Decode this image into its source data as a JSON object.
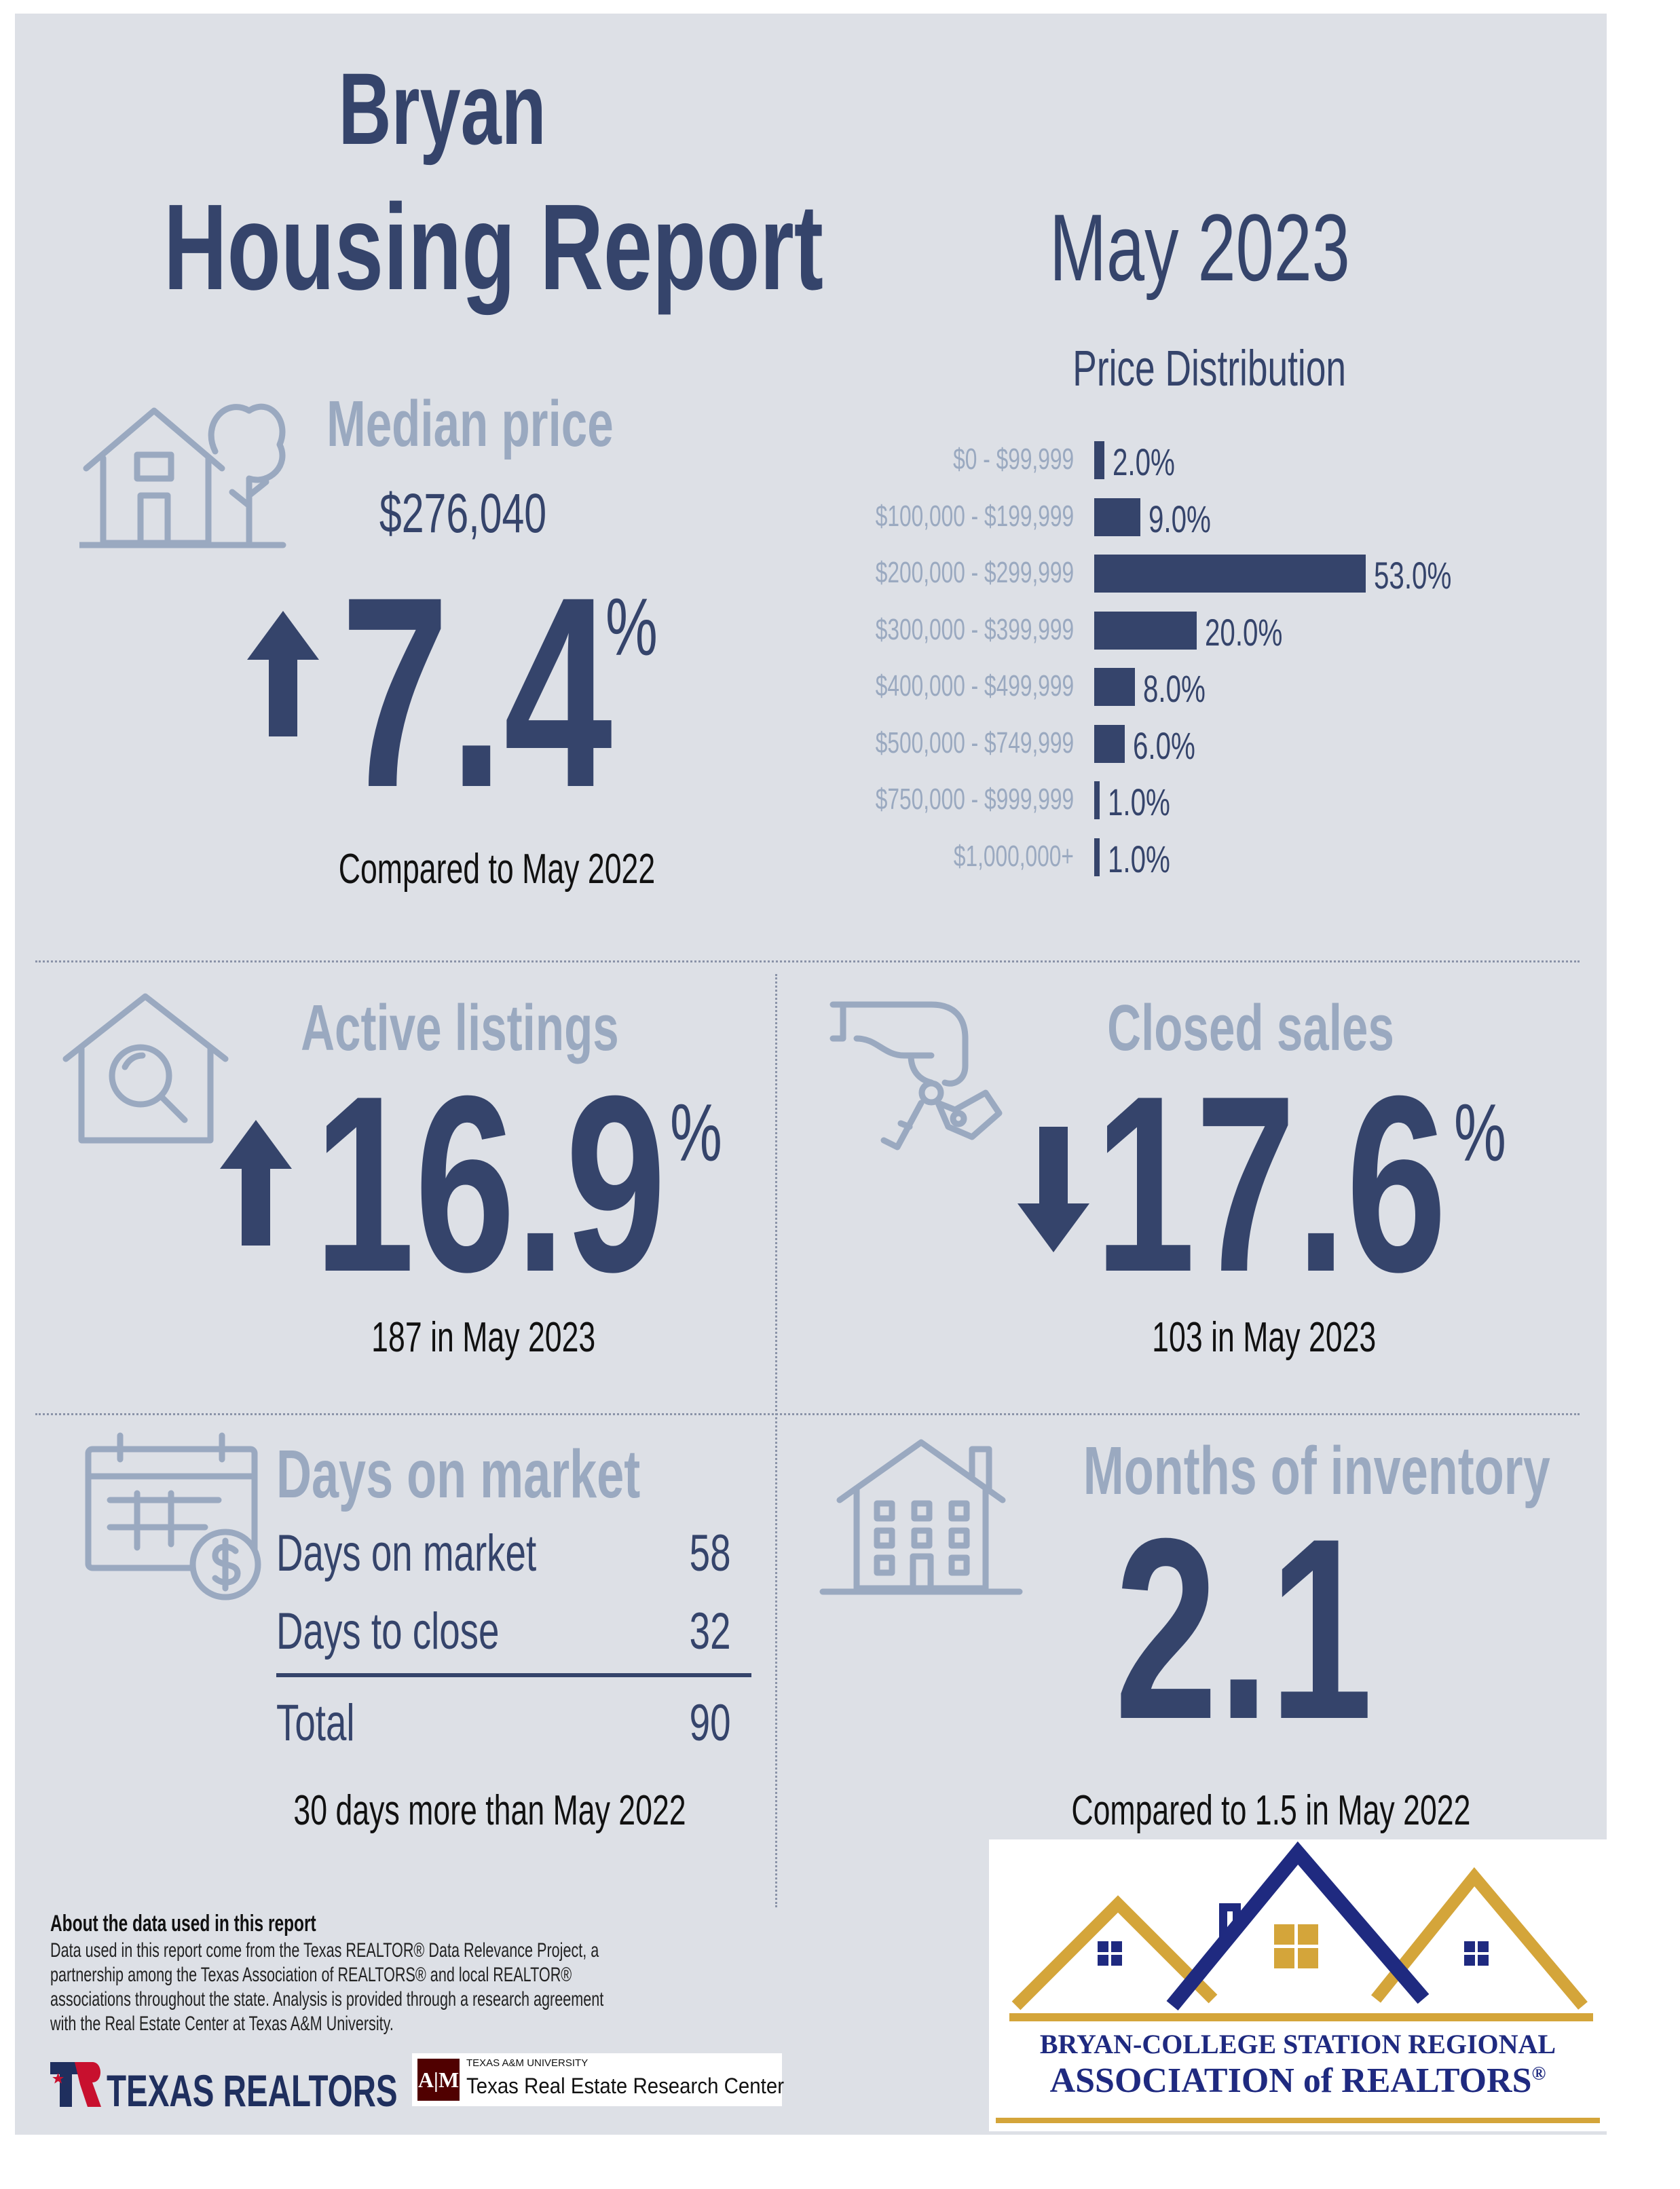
{
  "title": {
    "city": "Bryan",
    "subtitle": "Housing Report"
  },
  "period": "May 2023",
  "median_price": {
    "heading": "Median price",
    "value": "$276,040",
    "change": "7.4",
    "unit": "%",
    "direction": "up",
    "note": "Compared to May 2022"
  },
  "price_distribution": {
    "heading": "Price Distribution",
    "chart_data": {
      "type": "bar",
      "orientation": "horizontal",
      "title": "Price Distribution",
      "categories": [
        "$0 - $99,999",
        "$100,000 - $199,999",
        "$200,000 - $299,999",
        "$300,000 - $399,999",
        "$400,000 - $499,999",
        "$500,000 - $749,999",
        "$750,000 - $999,999",
        "$1,000,000+"
      ],
      "values": [
        2.0,
        9.0,
        53.0,
        20.0,
        8.0,
        6.0,
        1.0,
        1.0
      ],
      "value_labels": [
        "2.0%",
        "9.0%",
        "53.0%",
        "20.0%",
        "8.0%",
        "6.0%",
        "1.0%",
        "1.0%"
      ]
    }
  },
  "active_listings": {
    "heading": "Active listings",
    "change": "16.9",
    "unit": "%",
    "direction": "up",
    "note": "187 in May 2023"
  },
  "closed_sales": {
    "heading": "Closed sales",
    "change": "17.6",
    "unit": "%",
    "direction": "down",
    "note": "103 in May 2023"
  },
  "days_on_market": {
    "heading": "Days on market",
    "rows": [
      {
        "label": "Days on market",
        "value": "58"
      },
      {
        "label": "Days to close",
        "value": "32"
      }
    ],
    "total": {
      "label": "Total",
      "value": "90"
    },
    "note": "30 days more than May 2022"
  },
  "months_inventory": {
    "heading": "Months of inventory",
    "value": "2.1",
    "note": "Compared to 1.5 in May 2022"
  },
  "about": {
    "heading": "About the data used in this report",
    "body": "Data used in this report come from the Texas REALTOR® Data Relevance Project, a partnership among the Texas Association of REALTORS® and local REALTOR® associations throughout the state. Analysis is provided through a research agreement with the Real Estate Center at Texas A&M University.",
    "lines": [
      "Data used in this report come from the Texas REALTOR® Data Relevance Project, a",
      "partnership among the Texas Association of REALTORS® and local REALTOR®",
      "associations throughout the state. Analysis is provided through a research agreement",
      "with the Real Estate Center at Texas A&M University."
    ]
  },
  "logos": {
    "texas_realtors": "TEXAS REALTORS",
    "tamu_small": "TEXAS A&M UNIVERSITY",
    "tamu_center": "Texas Real Estate Research Center",
    "bcs_line1": "BRYAN-COLLEGE STATION REGIONAL",
    "bcs_line2": "ASSOCIATION of REALTORS",
    "bcs_reg": "®"
  },
  "colors": {
    "navy": "#35446b",
    "muted": "#9aa9c0",
    "background": "#dde0e6",
    "gold": "#d4a53a"
  }
}
